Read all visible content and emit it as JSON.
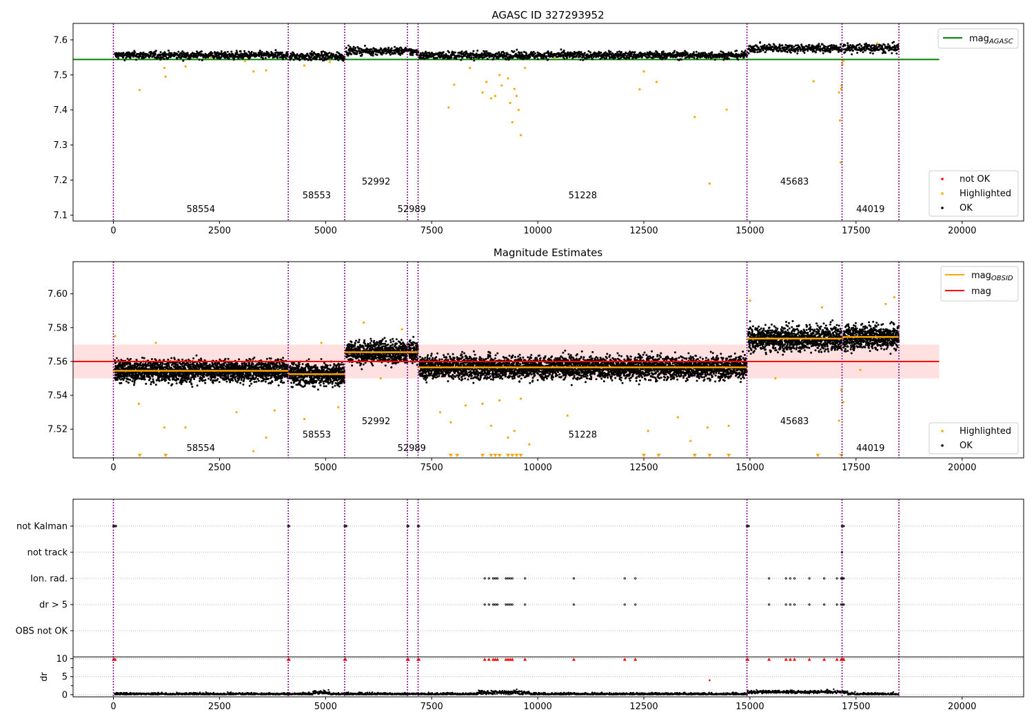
{
  "chart_data": [
    {
      "type": "scatter",
      "title": "AGASC ID 327293952",
      "xlabel": "",
      "ylabel": "",
      "xlim": [
        -950,
        21450
      ],
      "ylim": [
        7.083,
        7.647
      ],
      "xticks": [
        0,
        2500,
        5000,
        7500,
        10000,
        12500,
        15000,
        17500,
        20000
      ],
      "yticks": [
        7.1,
        7.2,
        7.3,
        7.4,
        7.5,
        7.6
      ],
      "ytick_labels": [
        "7.1",
        "7.2",
        "7.3",
        "7.4",
        "7.5",
        "7.6"
      ],
      "obsid_boundaries": [
        0,
        4120,
        5450,
        6930,
        7180,
        14930,
        17170,
        18510
      ],
      "obsid_labels": [
        {
          "text": "58554",
          "x": 2060,
          "y": 7.109
        },
        {
          "text": "58553",
          "x": 4790,
          "y": 7.148
        },
        {
          "text": "52992",
          "x": 6190,
          "y": 7.187
        },
        {
          "text": "52989",
          "x": 7030,
          "y": 7.109
        },
        {
          "text": "51228",
          "x": 11060,
          "y": 7.148
        },
        {
          "text": "45683",
          "x": 16050,
          "y": 7.187
        },
        {
          "text": "44019",
          "x": 17840,
          "y": 7.109
        }
      ],
      "segments": [
        {
          "x0": 0,
          "x1": 4120,
          "mean": 7.556,
          "spread": 0.009
        },
        {
          "x0": 4120,
          "x1": 5450,
          "mean": 7.553,
          "spread": 0.01
        },
        {
          "x0": 5450,
          "x1": 6930,
          "mean": 7.568,
          "spread": 0.009
        },
        {
          "x0": 6930,
          "x1": 7180,
          "mean": 7.566,
          "spread": 0.009
        },
        {
          "x0": 7180,
          "x1": 14930,
          "mean": 7.556,
          "spread": 0.009
        },
        {
          "x0": 14930,
          "x1": 17170,
          "mean": 7.576,
          "spread": 0.01
        },
        {
          "x0": 17170,
          "x1": 18510,
          "mean": 7.576,
          "spread": 0.011
        }
      ],
      "highlighted": [
        [
          620,
          7.457
        ],
        [
          1200,
          7.52
        ],
        [
          1230,
          7.495
        ],
        [
          1700,
          7.524
        ],
        [
          2300,
          7.55
        ],
        [
          3100,
          7.54
        ],
        [
          3300,
          7.51
        ],
        [
          3600,
          7.513
        ],
        [
          4500,
          7.527
        ],
        [
          5100,
          7.537
        ],
        [
          7900,
          7.407
        ],
        [
          8030,
          7.472
        ],
        [
          8400,
          7.52
        ],
        [
          8700,
          7.45
        ],
        [
          8790,
          7.48
        ],
        [
          8900,
          7.433
        ],
        [
          9000,
          7.44
        ],
        [
          9100,
          7.5
        ],
        [
          9150,
          7.47
        ],
        [
          9300,
          7.49
        ],
        [
          9350,
          7.42
        ],
        [
          9400,
          7.365
        ],
        [
          9450,
          7.46
        ],
        [
          9500,
          7.44
        ],
        [
          9550,
          7.4
        ],
        [
          9600,
          7.328
        ],
        [
          9700,
          7.52
        ],
        [
          10400,
          7.55
        ],
        [
          12400,
          7.459
        ],
        [
          12500,
          7.51
        ],
        [
          12800,
          7.48
        ],
        [
          13700,
          7.38
        ],
        [
          14050,
          7.19
        ],
        [
          14450,
          7.401
        ],
        [
          16500,
          7.482
        ],
        [
          17100,
          7.45
        ],
        [
          17150,
          7.46
        ],
        [
          17160,
          7.47
        ],
        [
          17120,
          7.37
        ],
        [
          17140,
          7.25
        ],
        [
          17180,
          7.53
        ],
        [
          17200,
          7.54
        ],
        [
          18000,
          7.59
        ]
      ],
      "reference_lines": [
        {
          "name": "mag_{AGASC}",
          "value": 7.544,
          "color": "#008000",
          "x0": -950,
          "x1": 19460
        }
      ],
      "legends": [
        {
          "position": "top-right",
          "entries": [
            {
              "label": "mag",
              "sub": "AGASC",
              "kind": "line",
              "color": "#008000"
            }
          ]
        },
        {
          "position": "bottom-right",
          "entries": [
            {
              "label": "not OK",
              "kind": "point",
              "color": "#ff0000"
            },
            {
              "label": "Highlighted",
              "kind": "point",
              "color": "#ffa500"
            },
            {
              "label": "OK",
              "kind": "point",
              "color": "#000000"
            }
          ]
        }
      ],
      "colors": {
        "ok": "#000000",
        "highlighted": "#ffa500",
        "not_ok": "#ff0000",
        "boundary": "#800080",
        "agasc": "#008000"
      }
    },
    {
      "type": "scatter",
      "title": "Magnitude Estimates",
      "xlabel": "",
      "ylabel": "",
      "xlim": [
        -950,
        21450
      ],
      "ylim": [
        7.503,
        7.619
      ],
      "xticks": [
        0,
        2500,
        5000,
        7500,
        10000,
        12500,
        15000,
        17500,
        20000
      ],
      "yticks": [
        7.52,
        7.54,
        7.56,
        7.58,
        7.6
      ],
      "ytick_labels": [
        "7.52",
        "7.54",
        "7.56",
        "7.58",
        "7.60"
      ],
      "obsid_boundaries": [
        0,
        4120,
        5450,
        6930,
        7180,
        14930,
        17170,
        18510
      ],
      "obsid_labels": [
        {
          "text": "58554",
          "x": 2060,
          "y": 7.507
        },
        {
          "text": "58553",
          "x": 4790,
          "y": 7.515
        },
        {
          "text": "52992",
          "x": 6190,
          "y": 7.523
        },
        {
          "text": "52989",
          "x": 7030,
          "y": 7.507
        },
        {
          "text": "51228",
          "x": 11060,
          "y": 7.515
        },
        {
          "text": "45683",
          "x": 16050,
          "y": 7.523
        },
        {
          "text": "44019",
          "x": 17840,
          "y": 7.507
        }
      ],
      "segments": [
        {
          "x0": 0,
          "x1": 4120,
          "mean": 7.5545,
          "spread": 0.0055
        },
        {
          "x0": 4120,
          "x1": 5450,
          "mean": 7.5525,
          "spread": 0.0055
        },
        {
          "x0": 5450,
          "x1": 6930,
          "mean": 7.5655,
          "spread": 0.0055
        },
        {
          "x0": 6930,
          "x1": 7180,
          "mean": 7.5655,
          "spread": 0.0055
        },
        {
          "x0": 7180,
          "x1": 14930,
          "mean": 7.5565,
          "spread": 0.0055
        },
        {
          "x0": 14930,
          "x1": 17170,
          "mean": 7.5735,
          "spread": 0.006
        },
        {
          "x0": 17170,
          "x1": 18510,
          "mean": 7.5745,
          "spread": 0.006
        }
      ],
      "highlighted": [
        [
          40,
          7.575
        ],
        [
          600,
          7.535
        ],
        [
          1000,
          7.571
        ],
        [
          1200,
          7.521
        ],
        [
          1700,
          7.521
        ],
        [
          2900,
          7.53
        ],
        [
          3300,
          7.507
        ],
        [
          3600,
          7.515
        ],
        [
          3800,
          7.531
        ],
        [
          4500,
          7.526
        ],
        [
          4900,
          7.571
        ],
        [
          5300,
          7.533
        ],
        [
          5900,
          7.583
        ],
        [
          6300,
          7.55
        ],
        [
          6800,
          7.579
        ],
        [
          7700,
          7.53
        ],
        [
          7950,
          7.524
        ],
        [
          8300,
          7.534
        ],
        [
          8700,
          7.535
        ],
        [
          8900,
          7.522
        ],
        [
          9100,
          7.537
        ],
        [
          9300,
          7.515
        ],
        [
          9450,
          7.519
        ],
        [
          9600,
          7.538
        ],
        [
          9800,
          7.511
        ],
        [
          10700,
          7.528
        ],
        [
          12600,
          7.519
        ],
        [
          13300,
          7.527
        ],
        [
          13600,
          7.513
        ],
        [
          14000,
          7.521
        ],
        [
          14500,
          7.522
        ],
        [
          15000,
          7.596
        ],
        [
          15600,
          7.55
        ],
        [
          16700,
          7.592
        ],
        [
          17100,
          7.525
        ],
        [
          17150,
          7.543
        ],
        [
          17200,
          7.536
        ],
        [
          17600,
          7.555
        ],
        [
          18200,
          7.594
        ],
        [
          18400,
          7.598
        ]
      ],
      "clipped_low_x": [
        620,
        1230,
        7950,
        8100,
        8700,
        8900,
        9000,
        9100,
        9300,
        9400,
        9500,
        9600,
        12500,
        12850,
        13700,
        14050,
        14500,
        16600,
        17150
      ],
      "reference_lines": [
        {
          "name": "mag",
          "value": 7.56,
          "color": "#ff0000",
          "x0": -950,
          "x1": 19460,
          "band": [
            7.55,
            7.57
          ]
        }
      ],
      "obsid_mag_color": "#ffa500",
      "legends": [
        {
          "position": "top-right",
          "entries": [
            {
              "label": "mag",
              "sub": "OBSID",
              "kind": "line",
              "color": "#ffa500"
            },
            {
              "label": "mag",
              "kind": "line",
              "color": "#ff0000"
            }
          ]
        },
        {
          "position": "bottom-right",
          "entries": [
            {
              "label": "Highlighted",
              "kind": "point",
              "color": "#ffa500"
            },
            {
              "label": "OK",
              "kind": "point",
              "color": "#000000"
            }
          ]
        }
      ]
    },
    {
      "type": "scatter",
      "title": "",
      "xlabel": "",
      "ylabel": "dr",
      "xlim": [
        -950,
        21450
      ],
      "xticks": [
        0,
        2500,
        5000,
        7500,
        10000,
        12500,
        15000,
        17500,
        20000
      ],
      "flag_rows": [
        "not Kalman",
        "not track",
        "Ion. rad.",
        "dr > 5",
        "OBS not OK"
      ],
      "flag_points": {
        "not Kalman": [
          0,
          20,
          40,
          60,
          4120,
          4140,
          5450,
          5470,
          5490,
          6930,
          6950,
          7180,
          7200,
          14930,
          14950,
          14970,
          17170,
          17190,
          17210
        ],
        "not track": [
          17170
        ],
        "Ion. rad.": [
          8750,
          8850,
          8950,
          9000,
          9050,
          9250,
          9300,
          9350,
          9400,
          9700,
          10850,
          12050,
          12300,
          15450,
          15850,
          15950,
          16050,
          16400,
          16750,
          17050,
          17150,
          17170,
          17190,
          17210
        ],
        "dr > 5": [
          8750,
          8850,
          8950,
          9000,
          9050,
          9250,
          9300,
          9350,
          9400,
          9700,
          10850,
          12050,
          12300,
          15450,
          15850,
          15950,
          16050,
          16400,
          16750,
          17050,
          17150,
          17170,
          17190,
          17210
        ],
        "OBS not OK": []
      },
      "dr_ylim": [
        -0.6,
        10.5
      ],
      "dr_yticks": [
        0,
        5,
        10
      ],
      "dr_clipped_x": [
        0,
        20,
        40,
        4120,
        4140,
        5450,
        5470,
        6930,
        6950,
        7180,
        7200,
        8750,
        8850,
        8950,
        9000,
        9050,
        9250,
        9300,
        9350,
        9400,
        9700,
        10850,
        12050,
        12300,
        14930,
        14950,
        15450,
        15850,
        15950,
        16050,
        16400,
        16750,
        17050,
        17150,
        17170,
        17190,
        17210
      ],
      "dr_outliers": [
        [
          14050,
          4.0
        ]
      ],
      "colors": {
        "flag": "#000000",
        "dr_ok": "#000000",
        "dr_clipped": "#ff0000"
      }
    }
  ]
}
